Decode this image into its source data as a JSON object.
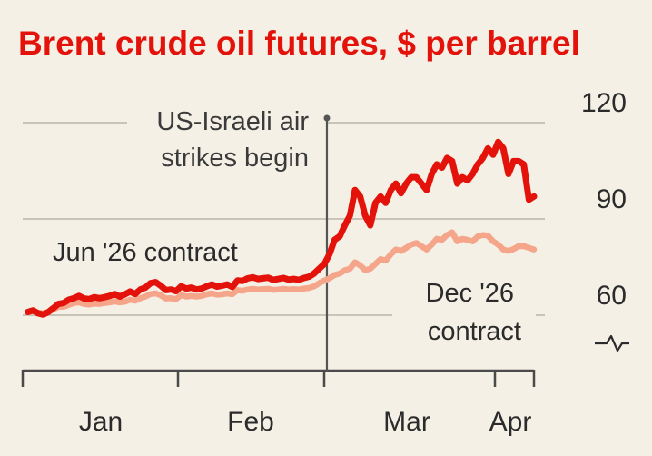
{
  "chart_data": {
    "type": "line",
    "title": "Brent crude oil futures, $ per barrel",
    "xlabel": "",
    "ylabel": "",
    "ylim": [
      45,
      120
    ],
    "yticks": [
      60,
      90,
      120
    ],
    "axis_break_symbol": "-/\\-",
    "xlim": [
      0,
      100
    ],
    "x_tick_labels": [
      {
        "label": "Jan",
        "x": 0
      },
      {
        "label": "Feb",
        "x": 31
      },
      {
        "label": "Mar",
        "x": 59
      },
      {
        "label": "Apr",
        "x": 90
      }
    ],
    "annotation": {
      "text_lines": [
        "US-Israeli air",
        "strikes begin"
      ],
      "x": 59.5
    },
    "series": [
      {
        "name": "Jun '26 contract",
        "color": "#e3120b",
        "x": [
          1,
          2,
          3,
          4,
          5,
          6,
          7,
          8,
          9,
          10,
          11,
          12,
          13,
          14,
          15,
          16,
          17,
          18,
          19,
          20,
          21,
          22,
          23,
          24,
          25,
          26,
          27,
          28,
          29,
          30,
          31,
          32,
          33,
          34,
          35,
          36,
          37,
          38,
          39,
          40,
          41,
          42,
          43,
          44,
          45,
          46,
          47,
          48,
          49,
          50,
          51,
          52,
          53,
          54,
          55,
          56,
          57,
          58,
          59,
          60,
          61,
          62,
          63,
          64,
          65,
          66,
          67,
          68,
          69,
          70,
          71,
          72,
          73,
          74,
          75,
          76,
          77,
          78,
          79,
          80,
          81,
          82,
          83,
          84,
          85,
          86,
          87,
          88,
          89,
          90,
          91,
          92,
          93,
          94,
          95,
          96,
          97,
          98,
          99,
          100
        ],
        "values": [
          61,
          61.5,
          60.6,
          60.2,
          61,
          62.2,
          63.5,
          63.8,
          64.8,
          65.3,
          66,
          65.2,
          65,
          65.6,
          65.3,
          65.6,
          66,
          66.6,
          65.8,
          66.5,
          67.4,
          66.6,
          68,
          68.6,
          70,
          70.3,
          69.2,
          67.8,
          68,
          67.5,
          69,
          68.3,
          68.6,
          68,
          68.3,
          69,
          69.6,
          68.9,
          69.2,
          69.6,
          68.8,
          70.8,
          70.7,
          71.5,
          71.8,
          71.3,
          71.5,
          71.7,
          71,
          71.3,
          71.6,
          71.1,
          71.3,
          71,
          71.6,
          72,
          73,
          74.5,
          76,
          79,
          83.5,
          84.6,
          88,
          91,
          99,
          97,
          91,
          88,
          95,
          97,
          95,
          99,
          101,
          98,
          101,
          103,
          103,
          101,
          99,
          104,
          107,
          106,
          109,
          108,
          101,
          103,
          102,
          104,
          107,
          109,
          112,
          110,
          114,
          112,
          104,
          108,
          108,
          107,
          96,
          97
        ]
      },
      {
        "name": "Dec '26 contract",
        "color": "#f4a58a",
        "x": [
          1,
          2,
          3,
          4,
          5,
          6,
          7,
          8,
          9,
          10,
          11,
          12,
          13,
          14,
          15,
          16,
          17,
          18,
          19,
          20,
          21,
          22,
          23,
          24,
          25,
          26,
          27,
          28,
          29,
          30,
          31,
          32,
          33,
          34,
          35,
          36,
          37,
          38,
          39,
          40,
          41,
          42,
          43,
          44,
          45,
          46,
          47,
          48,
          49,
          50,
          51,
          52,
          53,
          54,
          55,
          56,
          57,
          58,
          59,
          60,
          61,
          62,
          63,
          64,
          65,
          66,
          67,
          68,
          69,
          70,
          71,
          72,
          73,
          74,
          75,
          76,
          77,
          78,
          79,
          80,
          81,
          82,
          83,
          84,
          85,
          86,
          87,
          88,
          89,
          90,
          91,
          92,
          93,
          94,
          95,
          96,
          97,
          98,
          99,
          100
        ],
        "values": [
          61,
          61.3,
          60.8,
          60.6,
          61,
          61.8,
          62.6,
          62.6,
          63.2,
          63.8,
          64,
          63.5,
          63.3,
          63.6,
          63.5,
          63.8,
          64,
          64.3,
          64,
          64.2,
          64.8,
          64.5,
          65.3,
          65.8,
          66.6,
          66.8,
          66.2,
          65.2,
          65.3,
          65,
          66.3,
          65.8,
          66,
          65.8,
          66,
          66.5,
          66.8,
          66.4,
          66.5,
          66.8,
          66.5,
          67.8,
          67.6,
          68,
          68.2,
          68,
          68.1,
          68.2,
          67.9,
          68,
          68.2,
          68,
          68.1,
          68,
          68.3,
          68.5,
          69,
          70,
          70.8,
          71.5,
          72.5,
          73,
          74,
          74.5,
          76.5,
          75.5,
          74,
          74.5,
          76,
          77.5,
          77,
          79,
          80.5,
          80,
          81,
          82,
          82.5,
          81.5,
          80.5,
          82,
          83.8,
          83.5,
          85,
          85.8,
          83,
          83.8,
          83.5,
          83,
          84.5,
          85,
          84.8,
          83,
          82,
          80.5,
          80,
          80.6,
          81.5,
          81.5,
          81,
          80.5
        ]
      }
    ],
    "series_labels": {
      "jun": "Jun '26 contract",
      "dec_line1": "Dec '26",
      "dec_line2": "contract"
    }
  }
}
